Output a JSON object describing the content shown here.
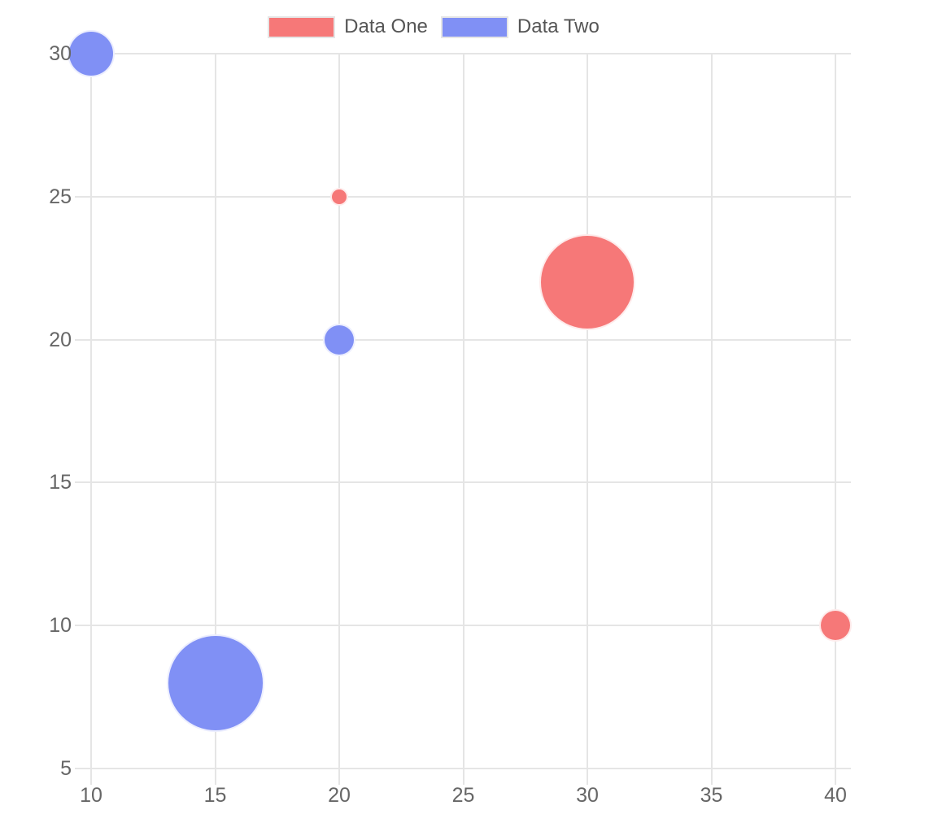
{
  "chart_data": {
    "type": "scatter",
    "variant": "bubble",
    "title": "",
    "xlabel": "",
    "ylabel": "",
    "series": [
      {
        "name": "Data One",
        "color": "#F67878",
        "points": [
          {
            "x": 20,
            "y": 25,
            "r": 11
          },
          {
            "x": 30,
            "y": 22,
            "r": 59
          },
          {
            "x": 40,
            "y": 10,
            "r": 20
          }
        ]
      },
      {
        "name": "Data Two",
        "color": "#8090F5",
        "points": [
          {
            "x": 10,
            "y": 30,
            "r": 29
          },
          {
            "x": 20,
            "y": 20,
            "r": 20
          },
          {
            "x": 15,
            "y": 8,
            "r": 60
          }
        ]
      }
    ],
    "x_axis": {
      "min": 10,
      "max": 40,
      "step": 5,
      "ticks": [
        "10",
        "15",
        "20",
        "25",
        "30",
        "35",
        "40"
      ]
    },
    "y_axis": {
      "min": 5,
      "max": 30,
      "step": 5,
      "ticks": [
        "5",
        "10",
        "15",
        "20",
        "25",
        "30"
      ]
    },
    "grid": true,
    "legend_position": "top-center"
  },
  "styles": {
    "background": "#ffffff",
    "grid_color": "#e5e5e5",
    "tick_label_color": "#666666",
    "legend_label_color": "#555555",
    "legend_swatch_border": "#e6e6e6",
    "bubble_border_color": "rgba(255,255,255,0.85)"
  }
}
